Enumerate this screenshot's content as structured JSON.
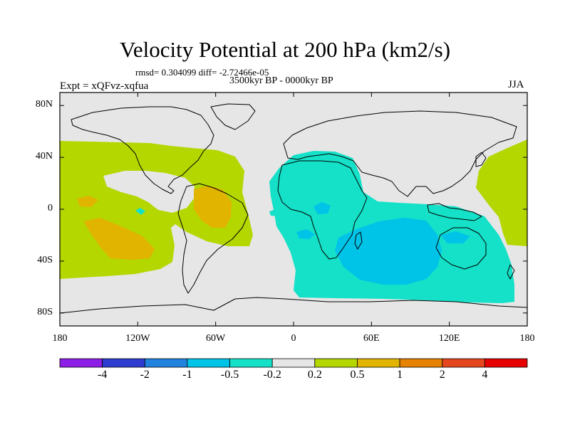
{
  "title": "Velocity Potential at 200 hPa (km2/s)",
  "stats": "rmsd= 0.304099 diff= -2.72466e-05",
  "period": "3500kyr BP - 0000kyr BP",
  "experiment": "Expt = xQFvz-xqfua",
  "season": "JJA",
  "map": {
    "projection": "cylindrical-equidistant",
    "lon_range": [
      -180,
      180
    ],
    "lat_range": [
      -90,
      90
    ],
    "lat_ticks": [
      {
        "value": 80,
        "label": "80N"
      },
      {
        "value": 40,
        "label": "40N"
      },
      {
        "value": 0,
        "label": "0"
      },
      {
        "value": -40,
        "label": "40S"
      },
      {
        "value": -80,
        "label": "80S"
      }
    ],
    "lon_ticks": [
      {
        "value": -180,
        "label": "180"
      },
      {
        "value": -120,
        "label": "120W"
      },
      {
        "value": -60,
        "label": "60W"
      },
      {
        "value": 0,
        "label": "0"
      },
      {
        "value": 60,
        "label": "60E"
      },
      {
        "value": 120,
        "label": "120E"
      },
      {
        "value": 180,
        "label": "180"
      }
    ]
  },
  "colorbar": {
    "levels": [
      "-4",
      "-2",
      "-1",
      "-0.5",
      "-0.2",
      "0.2",
      "0.5",
      "1",
      "2",
      "4"
    ],
    "colors": [
      "#8c1ee6",
      "#2e3ccf",
      "#1f82dc",
      "#00c3e8",
      "#14e1c8",
      "#e6e6e6",
      "#b4d700",
      "#e1b400",
      "#e68200",
      "#e6461e",
      "#e60000"
    ]
  },
  "anomaly_regions": [
    {
      "name": "east-pacific-americas-positive",
      "level": "0.2-0.5",
      "lon_range": [
        -180,
        -30
      ],
      "lat_range": [
        -45,
        45
      ]
    },
    {
      "name": "amazon-positive-core",
      "level": "0.5-1",
      "lon_range": [
        -80,
        -50
      ],
      "lat_range": [
        -15,
        15
      ]
    },
    {
      "name": "south-pacific-positive-core",
      "level": "0.5-1",
      "lon_range": [
        -165,
        -115
      ],
      "lat_range": [
        -35,
        -5
      ]
    },
    {
      "name": "africa-indian-ocean-negative",
      "level": "-0.5 to -0.2",
      "lon_range": [
        -20,
        150
      ],
      "lat_range": [
        -75,
        45
      ]
    },
    {
      "name": "indian-ocean-negative-core",
      "level": "-1 to -0.5",
      "lon_range": [
        40,
        120
      ],
      "lat_range": [
        -50,
        -10
      ]
    },
    {
      "name": "west-pacific-positive",
      "level": "0.2-0.5",
      "lon_range": [
        150,
        180
      ],
      "lat_range": [
        -20,
        60
      ]
    }
  ],
  "colors": {
    "land_outline": "#000000",
    "background": "#e6e6e6"
  }
}
